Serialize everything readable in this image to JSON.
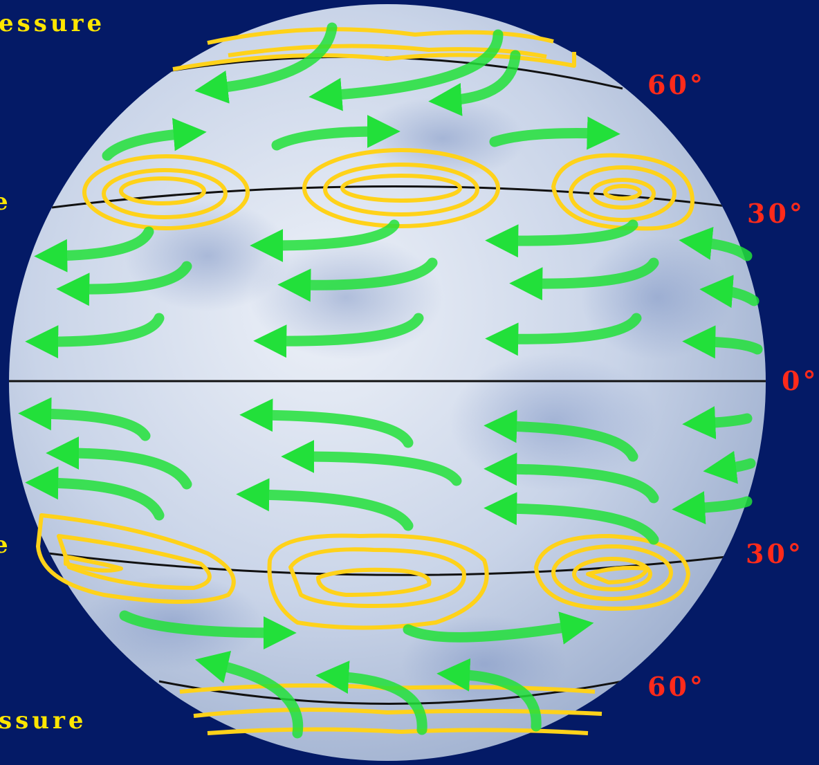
{
  "labels": {
    "top_left": "essure",
    "bottom_left": "ssure",
    "edge_fragment_mid_upper": "e",
    "edge_fragment_mid_lower": "e"
  },
  "latitudes": {
    "north_60": "60°",
    "north_30": "30°",
    "equator": "0°",
    "south_30": "30°",
    "south_60": "60°"
  },
  "colors": {
    "background": "#041a66",
    "globe": "#d6deee",
    "latitude_line": "#111111",
    "wind_arrow": "#22e03a",
    "pressure_contour": "#ffd21a",
    "latitude_text": "#ff2a1a",
    "edge_text": "#ffe600"
  },
  "wind_direction": {
    "polar_easterlies_north": "westward",
    "westerlies_north": "eastward",
    "trade_winds_north": "westward",
    "trade_winds_south": "westward",
    "westerlies_south": "eastward",
    "polar_easterlies_south": "westward"
  }
}
